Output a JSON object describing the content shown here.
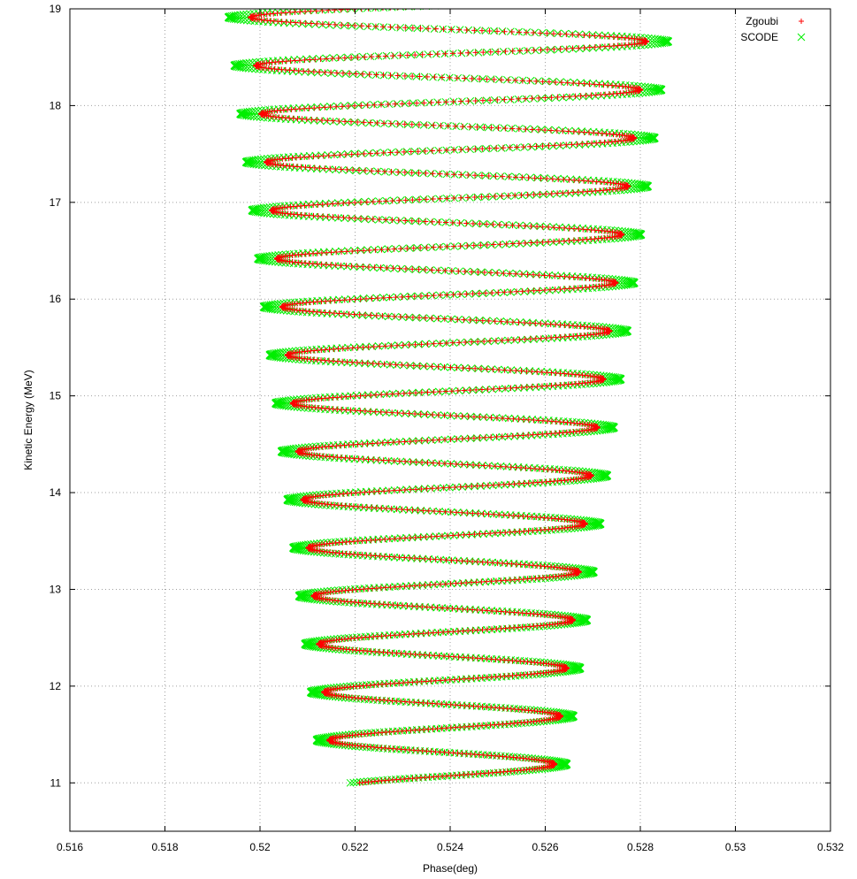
{
  "chart_data": {
    "type": "scatter",
    "xlabel": "Phase(deg)",
    "ylabel": "Kinetic Energy (MeV)",
    "xlim": [
      0.516,
      0.532
    ],
    "ylim": [
      10.5,
      19.0
    ],
    "x_ticks": [
      "0.516",
      "0.518",
      "0.52",
      "0.522",
      "0.524",
      "0.526",
      "0.528",
      "0.53",
      "0.532"
    ],
    "y_ticks": [
      "11",
      "12",
      "13",
      "14",
      "15",
      "16",
      "17",
      "18",
      "19"
    ],
    "grid": true,
    "legend_position": "top-right",
    "oscillation": {
      "energy_start": 11.0,
      "energy_end": 19.05,
      "period_mev": 0.5,
      "phase_start": 0.5219,
      "left_turning_start": 0.5213,
      "left_turning_end": 0.5193,
      "right_turning_start": 0.5264,
      "right_turning_end": 0.5287
    },
    "series": [
      {
        "name": "Zgoubi",
        "marker": "plus",
        "color": "#ff0000",
        "scale": 0.8,
        "every": 1
      },
      {
        "name": "SCODE",
        "marker": "cross",
        "color": "#00ee00",
        "scale": 1.0,
        "every": 1
      }
    ]
  }
}
